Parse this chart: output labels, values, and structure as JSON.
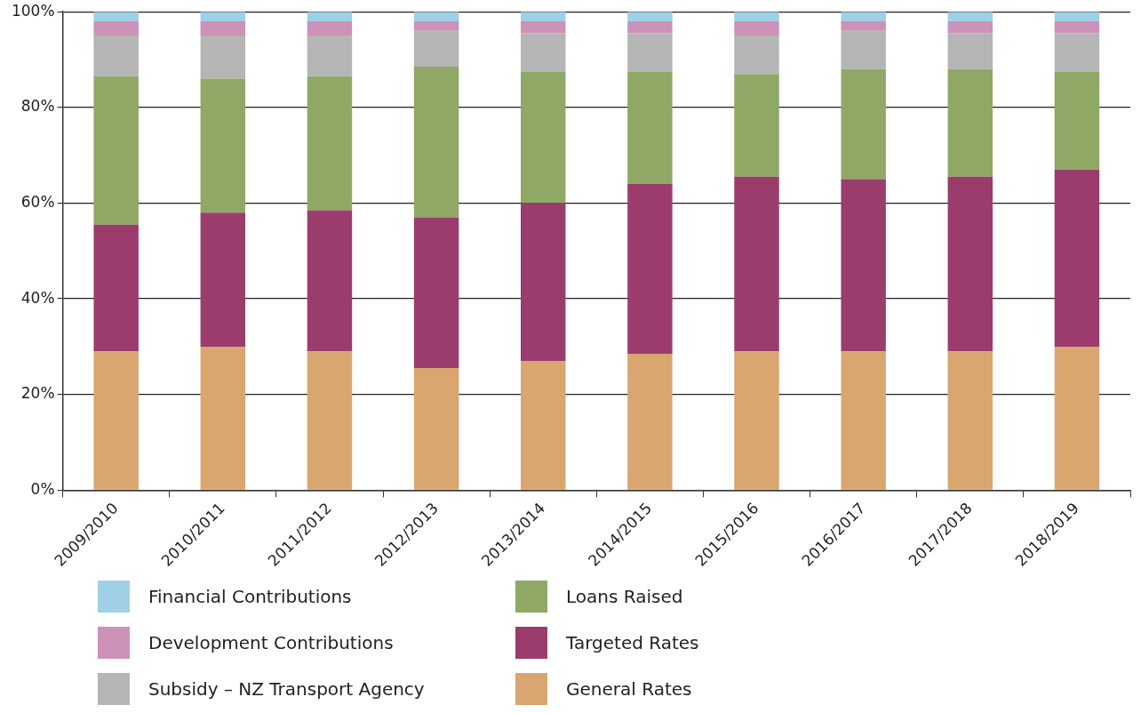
{
  "chart_data": {
    "type": "bar",
    "stacked": true,
    "categories": [
      "2009/2010",
      "2010/2011",
      "2011/2012",
      "2012/2013",
      "2013/2014",
      "2014/2015",
      "2015/2016",
      "2016/2017",
      "2017/2018",
      "2018/2019"
    ],
    "series": [
      {
        "name": "General Rates",
        "color": "#d9a66f",
        "values": [
          29,
          30,
          29,
          25.5,
          27,
          28.5,
          29,
          29,
          29,
          30
        ]
      },
      {
        "name": "Targeted Rates",
        "color": "#9b3d6c",
        "values": [
          26.5,
          28,
          29.5,
          31.5,
          33,
          35.5,
          36.5,
          36,
          36.5,
          37
        ]
      },
      {
        "name": "Loans Raised",
        "color": "#8fa866",
        "values": [
          31,
          28,
          28,
          31.5,
          27.5,
          23.5,
          21.5,
          23,
          22.5,
          20.5
        ]
      },
      {
        "name": "Subsidy – NZ Transport Agency",
        "color": "#b5b5b5",
        "values": [
          8.5,
          9,
          8.5,
          7.5,
          8,
          8,
          8,
          8,
          7.5,
          8
        ]
      },
      {
        "name": "Development Contributions",
        "color": "#cc92b8",
        "values": [
          3,
          3,
          3,
          2,
          2.5,
          2.5,
          3,
          2,
          2.5,
          2.5
        ]
      },
      {
        "name": "Financial Contributions",
        "color": "#9fd0e6",
        "values": [
          2,
          2,
          2,
          2,
          2,
          2,
          2,
          2,
          2,
          2
        ]
      }
    ],
    "ylim": [
      0,
      100
    ],
    "yticks": [
      {
        "value": 0,
        "label": "0%"
      },
      {
        "value": 20,
        "label": "20%"
      },
      {
        "value": 40,
        "label": "40%"
      },
      {
        "value": 60,
        "label": "60%"
      },
      {
        "value": 80,
        "label": "80%"
      },
      {
        "value": 100,
        "label": "100%"
      }
    ],
    "grid": "y",
    "legend": "bottom"
  }
}
